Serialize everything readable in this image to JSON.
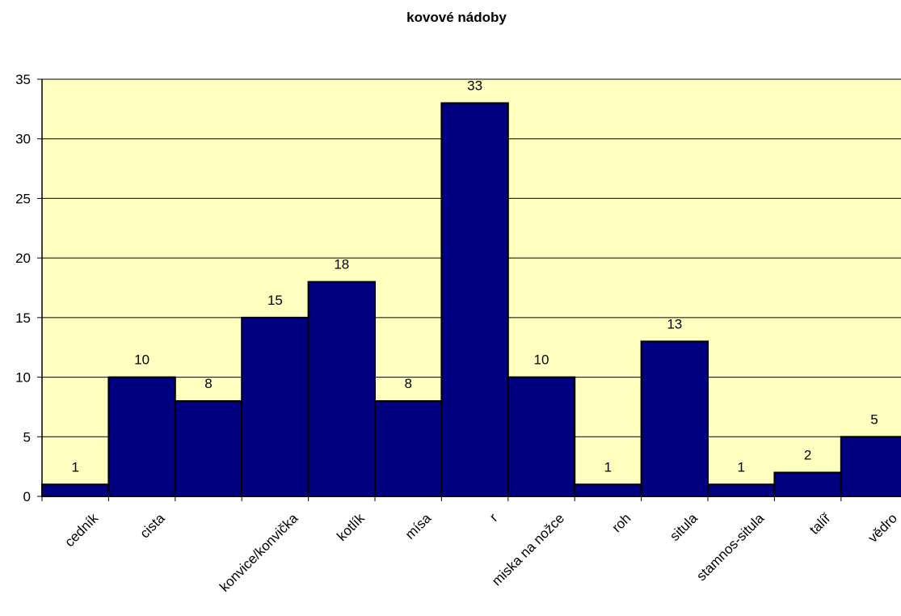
{
  "chart_data": {
    "type": "bar",
    "title": "kovové nádoby",
    "xlabel": "",
    "ylabel": "",
    "categories": [
      "cedník",
      "cista",
      "",
      "konvice/konvička",
      "kotlík",
      "mísa",
      "r",
      "miska na nožce",
      "roh",
      "situla",
      "stamnos-situla",
      "talíř",
      "vědro"
    ],
    "values": [
      1,
      10,
      8,
      15,
      18,
      8,
      33,
      10,
      1,
      13,
      1,
      2,
      5
    ],
    "data_labels": [
      "1",
      "10",
      "8",
      "15",
      "18",
      "8",
      "33",
      "10",
      "1",
      "13",
      "1",
      "2",
      "5"
    ],
    "ylim": [
      0,
      35
    ],
    "yticks": [
      "0",
      "5",
      "10",
      "15",
      "20",
      "25",
      "30",
      "35"
    ],
    "grid": true,
    "legend": "none",
    "colors": {
      "bar": "#000080",
      "plot_background": "#FFFFC0",
      "gridline": "#000000"
    }
  }
}
